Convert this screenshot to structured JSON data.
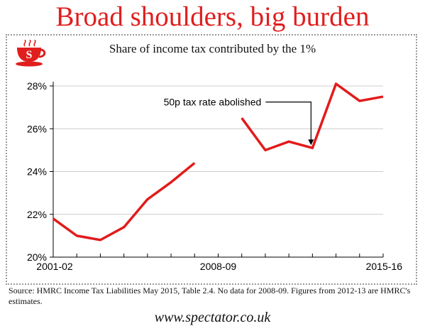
{
  "header": {
    "title": "Broad shoulders, big burden",
    "logo_icon": "spectator-teacup-icon",
    "logo_letter": "S"
  },
  "colors": {
    "accent": "#e01e1e",
    "line": "#e21b1b",
    "axis": "#000000",
    "grid": "#cccccc"
  },
  "chart_data": {
    "type": "line",
    "title": "Share of income tax contributed by the 1%",
    "xlabel": "",
    "ylabel": "",
    "x": [
      "2001-02",
      "2002-03",
      "2003-04",
      "2004-05",
      "2005-06",
      "2006-07",
      "2007-08",
      "2008-09",
      "2009-10",
      "2010-11",
      "2011-12",
      "2012-13",
      "2013-14",
      "2014-15",
      "2015-16"
    ],
    "x_tick_labels": [
      "2001-02",
      "2008-09",
      "2015-16"
    ],
    "series": [
      {
        "values": [
          21.8,
          21.0,
          20.8,
          21.4,
          22.7,
          23.5,
          24.4,
          null,
          26.5,
          25.0,
          25.4,
          25.1,
          28.1,
          27.3,
          27.5
        ]
      }
    ],
    "ylim": [
      20,
      28
    ],
    "y_ticks": [
      20,
      22,
      24,
      26,
      28
    ],
    "y_tick_labels": [
      "20%",
      "22%",
      "24%",
      "26%",
      "28%"
    ],
    "grid": "horizontal",
    "legend": "none",
    "annotations": [
      {
        "text": "50p tax rate abolished",
        "x": "2012-13",
        "y": 25.1
      }
    ]
  },
  "footer": {
    "source": "Source: HMRC Income Tax Liabilities May 2015, Table 2.4. No data for 2008-09. Figures from 2012-13 are HMRC's estimates.",
    "site": "www.spectator.co.uk"
  }
}
